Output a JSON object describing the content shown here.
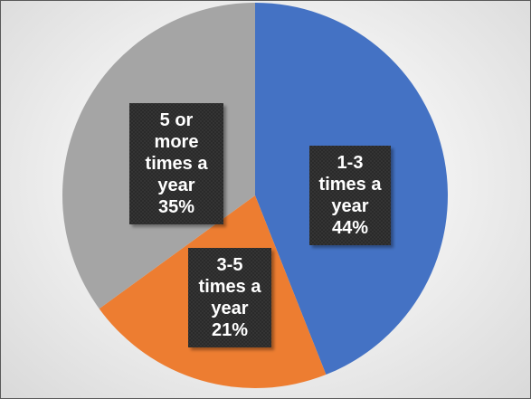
{
  "chart_data": {
    "type": "pie",
    "title": "",
    "slices": [
      {
        "label_lines": [
          "1-3",
          "times a",
          "year"
        ],
        "percent_label": "44%",
        "value": 44,
        "color": "#4472C4"
      },
      {
        "label_lines": [
          "3-5",
          "times a",
          "year"
        ],
        "percent_label": "21%",
        "value": 21,
        "color": "#ED7D31"
      },
      {
        "label_lines": [
          "5 or",
          "more",
          "times a",
          "year"
        ],
        "percent_label": "35%",
        "value": 35,
        "color": "#A5A5A5"
      }
    ],
    "start_angle_deg": 0,
    "direction": "clockwise",
    "label_box_color": "#262626"
  }
}
